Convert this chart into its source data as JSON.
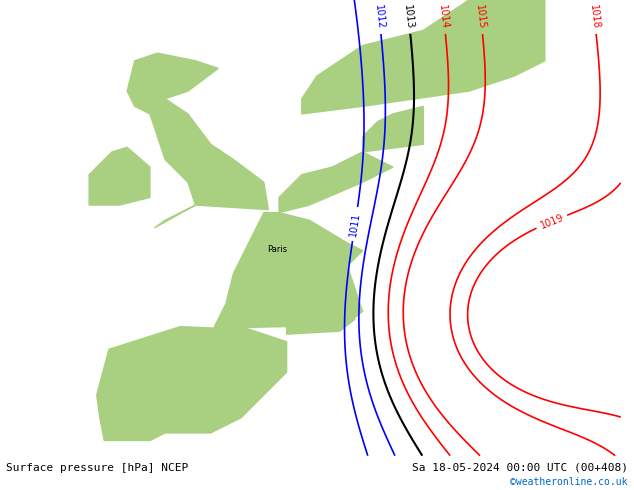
{
  "title_left": "Surface pressure [hPa] NCEP",
  "title_right": "Sa 18-05-2024 00:00 UTC (00+408)",
  "watermark": "©weatheronline.co.uk",
  "background_color": "#c8c8c8",
  "land_color_green": "#a8d080",
  "land_color_gray": "#c0c0c0",
  "isobar_red": "#ff0000",
  "isobar_blue": "#0000ff",
  "isobar_black": "#000000",
  "bottom_bar_color": "#d8d8d8",
  "fig_width": 6.34,
  "fig_height": 4.9,
  "dpi": 100
}
